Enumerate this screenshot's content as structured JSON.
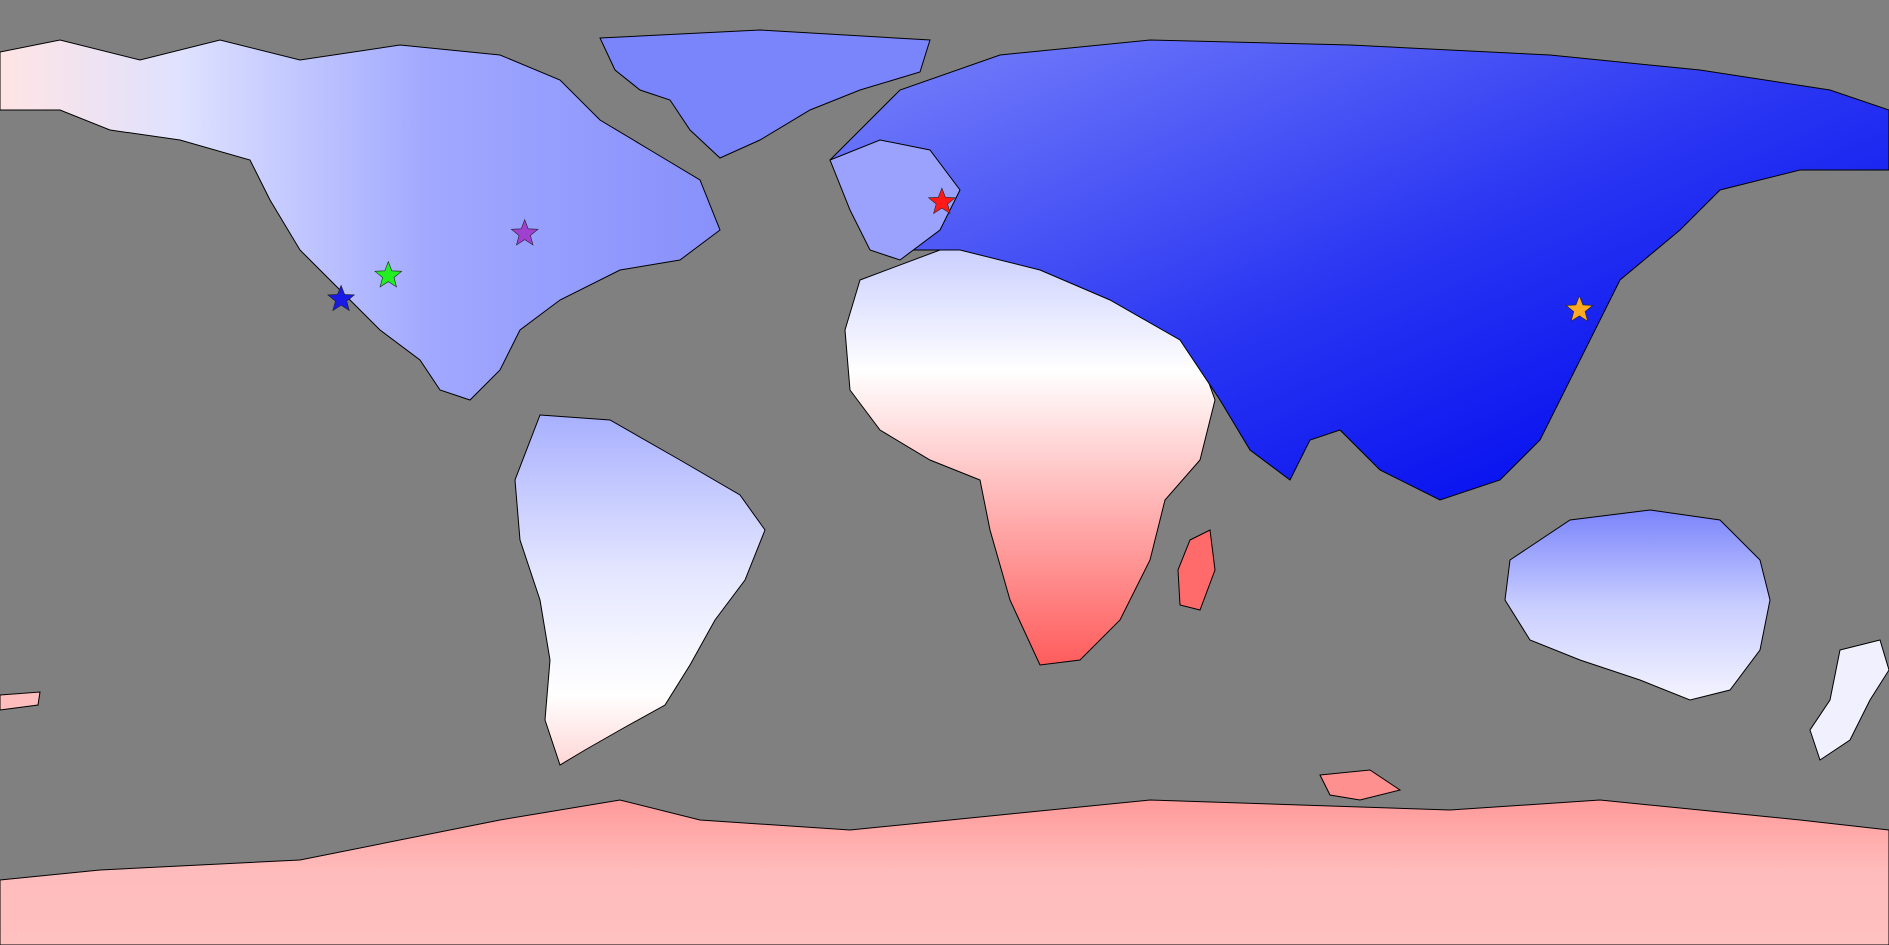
{
  "map": {
    "projection": "equirectangular",
    "background_color": "#808080",
    "coastline_color": "#000000",
    "color_scale": {
      "deep_blue": "#0a14f0",
      "mid_blue": "#6e78fa",
      "light_blue": "#c8cdff",
      "white": "#ffffff",
      "light_red": "#ffbdbd",
      "red": "#ff5a5a"
    },
    "markers": [
      {
        "name": "blue-star-marker",
        "lon": -115.0,
        "lat": 33.0,
        "color": "#1a1ae6"
      },
      {
        "name": "green-star-marker",
        "lon": -106.0,
        "lat": 37.5,
        "color": "#22ee22"
      },
      {
        "name": "purple-star-marker",
        "lon": -80.0,
        "lat": 45.5,
        "color": "#a040d0"
      },
      {
        "name": "red-star-marker",
        "lon": -0.5,
        "lat": 51.5,
        "color": "#ff1a1a"
      },
      {
        "name": "orange-star-marker",
        "lon": 121.0,
        "lat": 31.0,
        "color": "#ffaa22"
      }
    ]
  }
}
